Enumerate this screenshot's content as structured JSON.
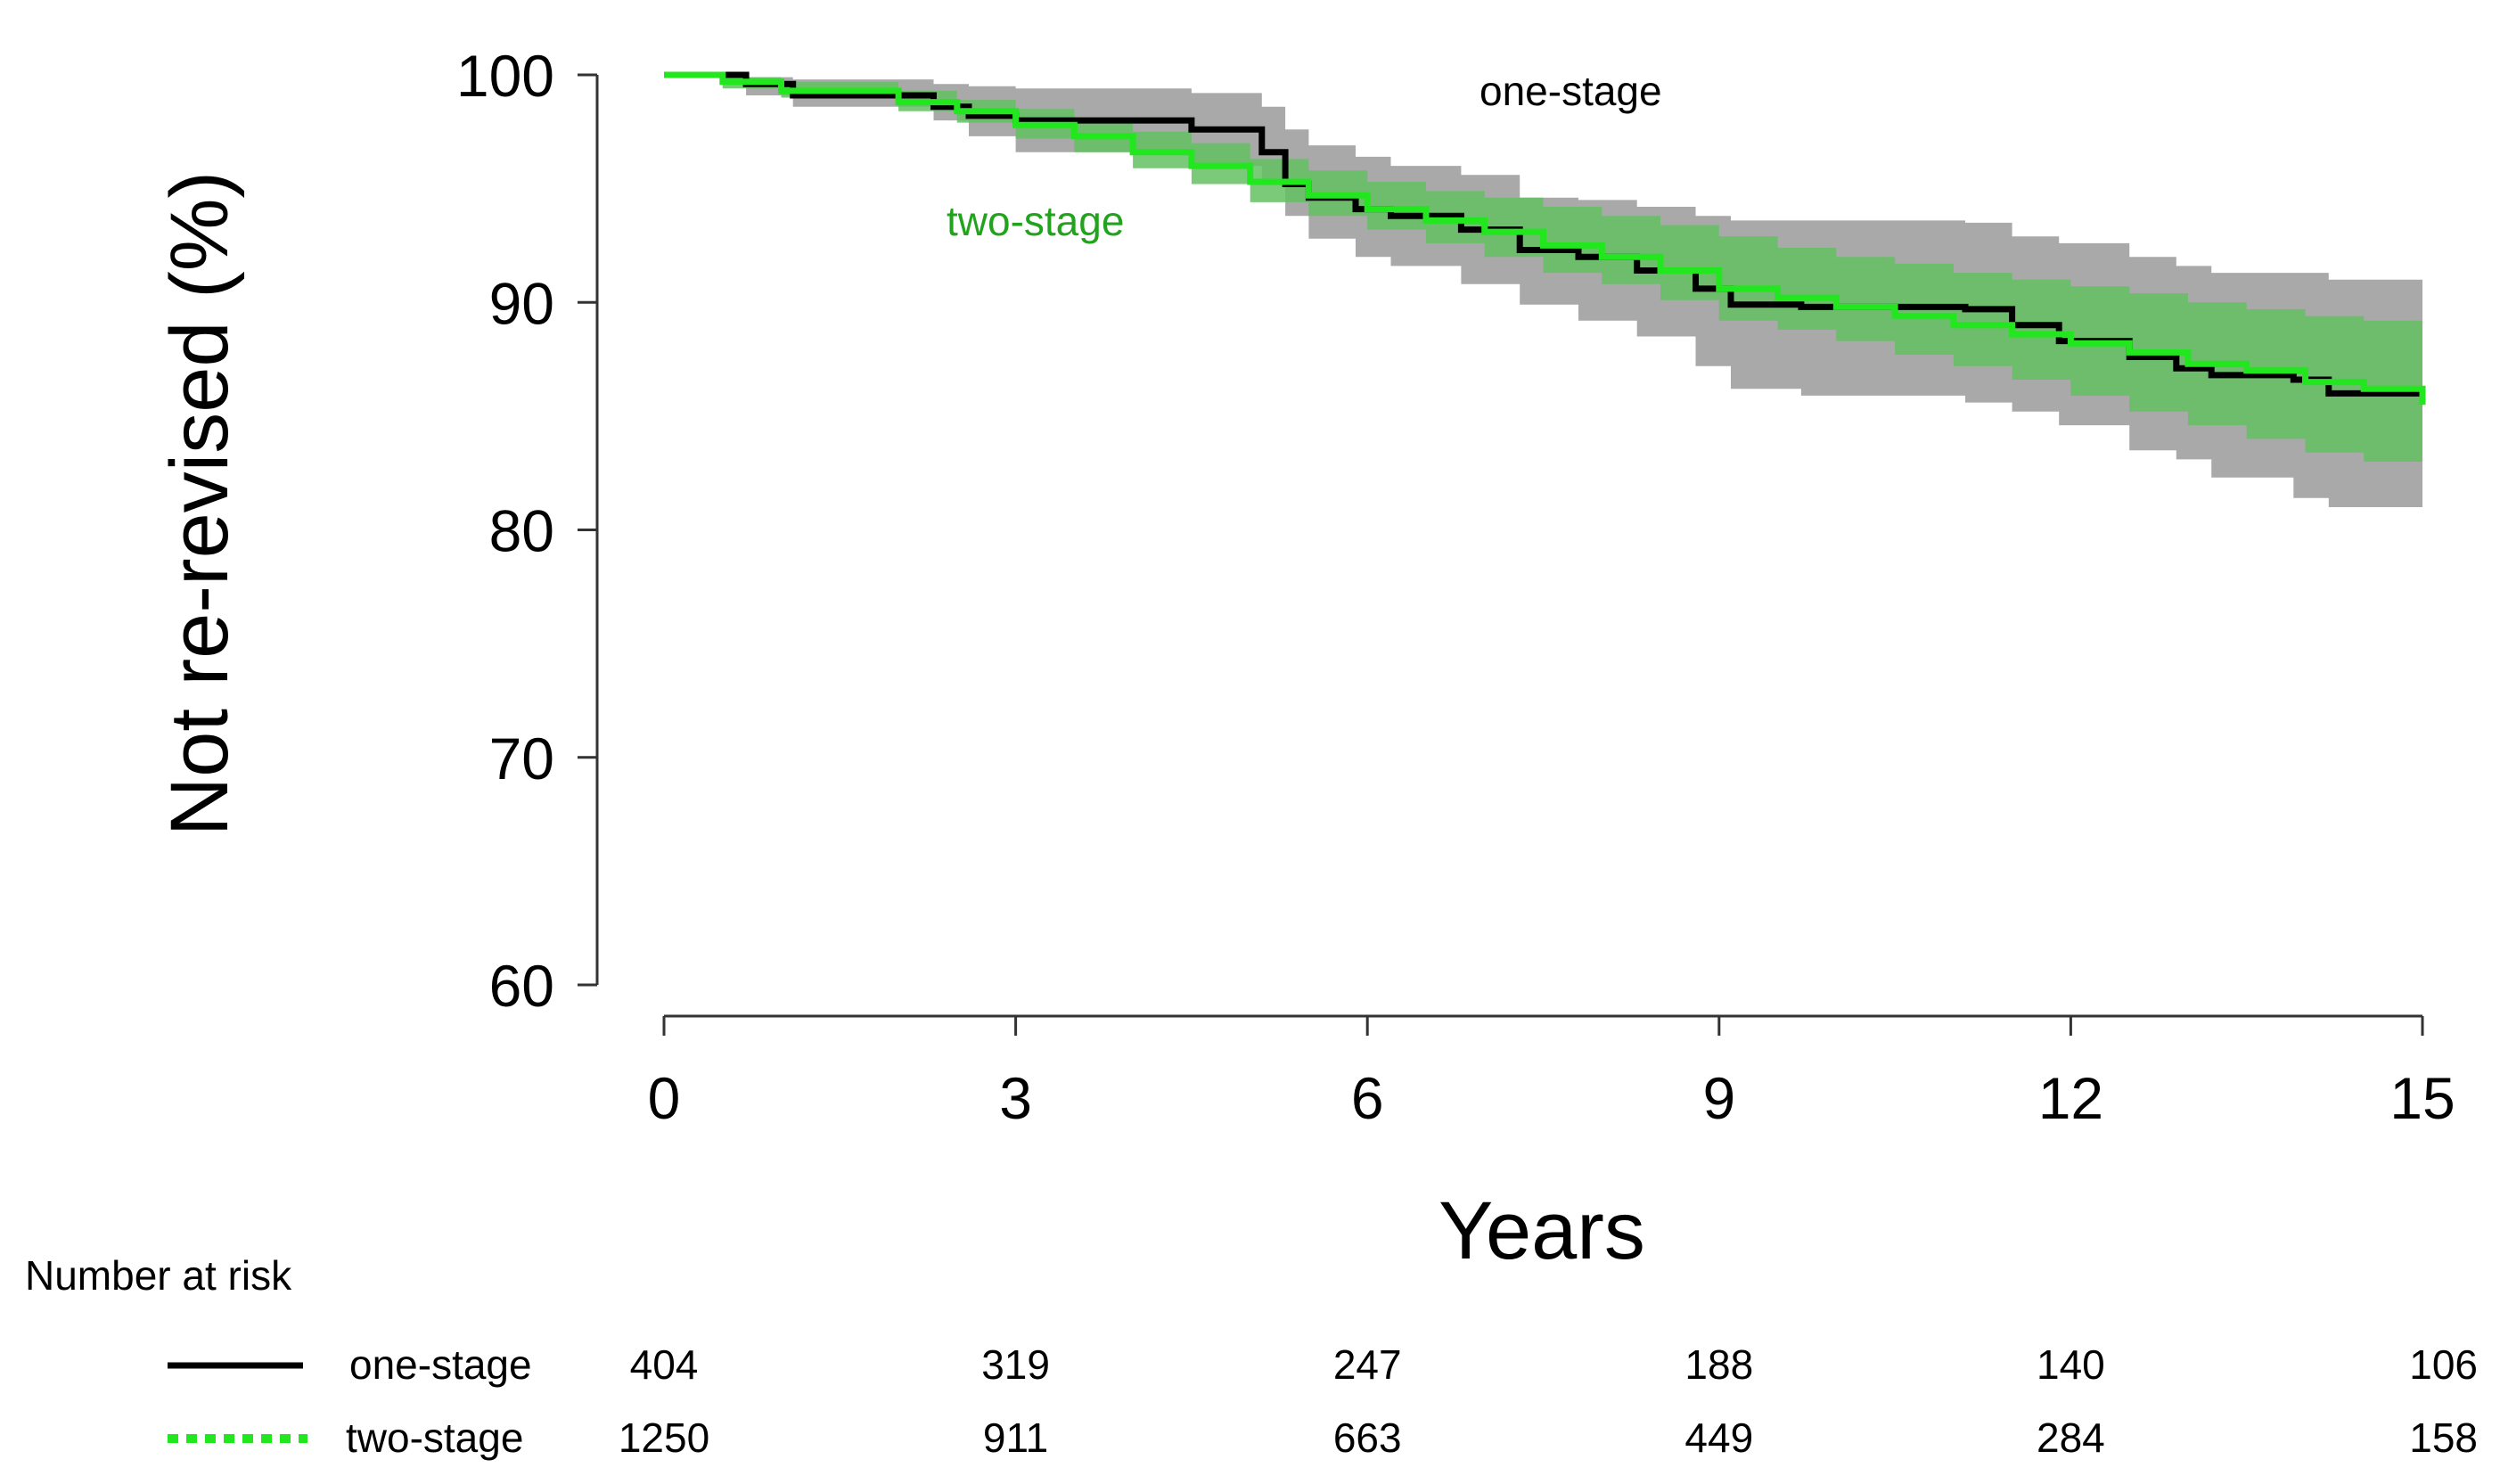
{
  "chart_data": {
    "type": "line",
    "title": "",
    "xlabel": "Years",
    "ylabel": "Not re-revised (%)",
    "xlim": [
      0,
      15
    ],
    "ylim": [
      60,
      100
    ],
    "x_ticks": [
      "0",
      "3",
      "6",
      "9",
      "12",
      "15"
    ],
    "y_ticks": [
      "60",
      "70",
      "80",
      "90",
      "100"
    ],
    "grid": false,
    "annotations": {
      "one_stage": "one-stage",
      "two_stage": "two-stage"
    },
    "series": [
      {
        "name": "one-stage",
        "color": "#000000",
        "ci_color": "#a9a9a9",
        "x": [
          0,
          0.7,
          1.1,
          2.3,
          2.6,
          3.0,
          4.5,
          5.1,
          5.3,
          5.5,
          5.9,
          6.2,
          6.8,
          7.3,
          7.8,
          8.3,
          8.8,
          9.1,
          9.7,
          10.3,
          11.1,
          11.5,
          11.9,
          12.5,
          12.9,
          13.2,
          13.9,
          14.2,
          15.0
        ],
        "y": [
          100,
          99.6,
          99.1,
          98.6,
          98.2,
          98.0,
          97.6,
          96.6,
          95.2,
          94.6,
          94.1,
          93.8,
          93.2,
          92.3,
          92.0,
          91.4,
          90.6,
          89.9,
          89.8,
          89.8,
          89.7,
          89.0,
          88.3,
          87.6,
          87.1,
          86.8,
          86.6,
          86.0,
          85.8
        ],
        "lower": [
          100,
          99.1,
          98.6,
          98.0,
          97.3,
          96.6,
          96.0,
          95.3,
          93.8,
          92.8,
          92.0,
          91.6,
          90.8,
          89.9,
          89.2,
          88.5,
          87.2,
          86.2,
          85.9,
          85.9,
          85.6,
          85.2,
          84.6,
          83.5,
          83.1,
          82.3,
          81.4,
          81.0,
          81.0
        ],
        "upper": [
          100,
          99.9,
          99.8,
          99.6,
          99.5,
          99.4,
          99.2,
          98.6,
          97.6,
          96.9,
          96.4,
          96.0,
          95.6,
          94.6,
          94.5,
          94.2,
          93.8,
          93.6,
          93.6,
          93.6,
          93.5,
          92.9,
          92.6,
          92.0,
          91.6,
          91.3,
          91.3,
          91.0,
          91.0
        ]
      },
      {
        "name": "two-stage",
        "color": "#22e61e",
        "ci_color": "#63c163",
        "x": [
          0,
          0.5,
          1.0,
          2.0,
          2.5,
          3.0,
          3.5,
          4.0,
          4.5,
          5.0,
          5.5,
          6.0,
          6.5,
          7.0,
          7.5,
          8.0,
          8.5,
          9.0,
          9.5,
          10.0,
          10.5,
          11.0,
          11.5,
          12.0,
          12.5,
          13.0,
          13.5,
          14.0,
          14.5,
          15.0
        ],
        "y": [
          100,
          99.7,
          99.3,
          98.8,
          98.4,
          97.8,
          97.3,
          96.6,
          96.0,
          95.3,
          94.7,
          94.1,
          93.6,
          93.1,
          92.5,
          92.0,
          91.4,
          90.6,
          90.2,
          89.8,
          89.4,
          89.0,
          88.6,
          88.2,
          87.8,
          87.3,
          87.0,
          86.5,
          86.2,
          85.5
        ],
        "lower": [
          100,
          99.4,
          99.0,
          98.4,
          97.9,
          97.2,
          96.6,
          95.9,
          95.2,
          94.4,
          93.8,
          93.2,
          92.6,
          92.0,
          91.3,
          90.8,
          90.1,
          89.2,
          88.8,
          88.3,
          87.7,
          87.2,
          86.6,
          85.9,
          85.2,
          84.6,
          84.0,
          83.4,
          83.0,
          82.4
        ],
        "upper": [
          100,
          99.9,
          99.7,
          99.3,
          98.9,
          98.5,
          98.0,
          97.5,
          97.0,
          96.3,
          95.8,
          95.3,
          94.9,
          94.6,
          94.2,
          93.8,
          93.4,
          92.9,
          92.4,
          92.0,
          91.7,
          91.3,
          91.0,
          90.7,
          90.4,
          90.0,
          89.7,
          89.4,
          89.2,
          88.8
        ]
      }
    ],
    "risk_table": {
      "title": "Number at risk",
      "rows": [
        {
          "label": "one-stage",
          "color": "#000000",
          "style": "solid",
          "values": [
            "404",
            "319",
            "247",
            "188",
            "140",
            "106"
          ]
        },
        {
          "label": "two-stage",
          "color": "#22e61e",
          "style": "dotted",
          "values": [
            "1250",
            "911",
            "663",
            "449",
            "284",
            "158"
          ]
        }
      ]
    }
  }
}
